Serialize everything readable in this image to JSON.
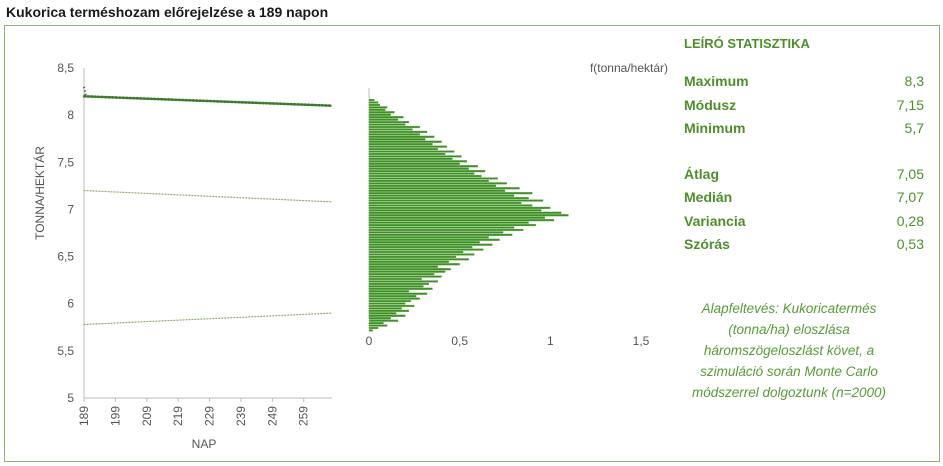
{
  "title": "Kukorica terméshozam előrejelzése a  189  napon",
  "chart_data": [
    {
      "type": "line",
      "xlabel": "NAP",
      "ylabel": "TONNA/HEKTÁR",
      "x_ticks": [
        "189",
        "199",
        "209",
        "219",
        "229",
        "239",
        "249",
        "259"
      ],
      "y_ticks": [
        "8,5",
        "8",
        "7,5",
        "7",
        "6,5",
        "6",
        "5,5",
        "5"
      ],
      "xlim": [
        189,
        268
      ],
      "ylim": [
        5,
        8.5
      ],
      "series": [
        {
          "x": [
            189,
            268
          ],
          "values": [
            8.2,
            8.1
          ],
          "style": "dotted-thick",
          "color": "#3d7a2e"
        },
        {
          "x": [
            189,
            268
          ],
          "values": [
            7.2,
            7.08
          ],
          "style": "dotted-thin",
          "color": "#8aa86f"
        },
        {
          "x": [
            189,
            268
          ],
          "values": [
            5.78,
            5.9
          ],
          "style": "dotted-thin",
          "color": "#8aa86f"
        }
      ],
      "extra_point": {
        "x": 189,
        "value": 8.3
      }
    },
    {
      "type": "bar",
      "orientation": "horizontal",
      "ylabel": "f(tonna/hektár)",
      "x_ticks": [
        "0",
        "0,5",
        "1",
        "1,5"
      ],
      "xlim": [
        0,
        1.5
      ],
      "ylim": [
        5,
        8.5
      ],
      "bin_start": 5.7,
      "bin_width": 0.026,
      "values": [
        0.02,
        0.05,
        0.1,
        0.08,
        0.16,
        0.12,
        0.2,
        0.15,
        0.22,
        0.18,
        0.25,
        0.2,
        0.23,
        0.28,
        0.26,
        0.32,
        0.22,
        0.35,
        0.3,
        0.33,
        0.38,
        0.29,
        0.4,
        0.36,
        0.42,
        0.45,
        0.38,
        0.5,
        0.44,
        0.55,
        0.48,
        0.58,
        0.52,
        0.63,
        0.57,
        0.68,
        0.61,
        0.72,
        0.66,
        0.79,
        0.74,
        0.85,
        0.8,
        0.92,
        0.88,
        1.02,
        0.97,
        1.1,
        1.06,
        0.95,
        1.0,
        0.9,
        0.84,
        0.96,
        0.88,
        0.8,
        0.9,
        0.75,
        0.83,
        0.7,
        0.76,
        0.66,
        0.71,
        0.62,
        0.58,
        0.64,
        0.55,
        0.6,
        0.5,
        0.54,
        0.46,
        0.51,
        0.42,
        0.47,
        0.38,
        0.43,
        0.35,
        0.4,
        0.31,
        0.36,
        0.28,
        0.32,
        0.24,
        0.28,
        0.2,
        0.22,
        0.16,
        0.19,
        0.12,
        0.14,
        0.09,
        0.1,
        0.06,
        0.05,
        0.03
      ],
      "color": "#3f8f2a"
    }
  ],
  "stats": {
    "heading": "LEÍRÓ STATISZTIKA",
    "group1": [
      {
        "label": "Maximum",
        "value": "8,3"
      },
      {
        "label": "Módusz",
        "value": "7,15"
      },
      {
        "label": "Minimum",
        "value": "5,7"
      }
    ],
    "group2": [
      {
        "label": "Átlag",
        "value": "7,05"
      },
      {
        "label": "Medián",
        "value": "7,07"
      },
      {
        "label": "Variancia",
        "value": "0,28"
      },
      {
        "label": "Szórás",
        "value": "0,53"
      }
    ]
  },
  "note": "Alapfeltevés: Kukoricatermés (tonna/ha) eloszlása háromszögeloszlást követ, a szimuláció során Monte Carlo módszerrel dolgoztunk (n=2000)"
}
